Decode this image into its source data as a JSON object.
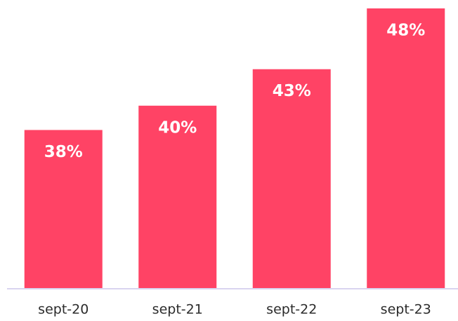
{
  "chart_data": {
    "type": "bar",
    "categories": [
      "sept-20",
      "sept-21",
      "sept-22",
      "sept-23"
    ],
    "values": [
      38,
      40,
      43,
      48
    ],
    "value_labels": [
      "38%",
      "40%",
      "43%",
      "48%"
    ],
    "color": "#ff4365",
    "ylim": [
      25,
      48
    ]
  }
}
